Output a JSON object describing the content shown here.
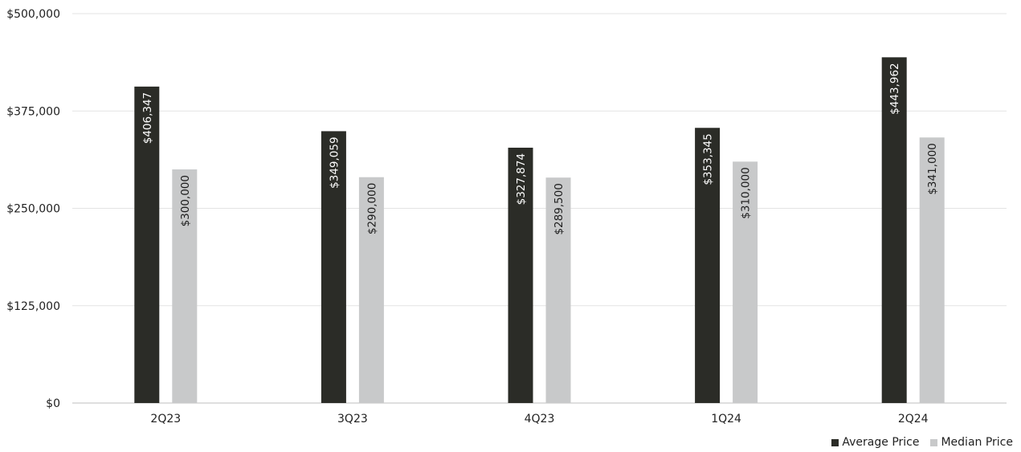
{
  "chart_data": {
    "type": "bar",
    "categories": [
      "2Q23",
      "3Q23",
      "4Q23",
      "1Q24",
      "2Q24"
    ],
    "series": [
      {
        "name": "Average Price",
        "color": "#2b2c27",
        "label_color": "#ffffff",
        "values": [
          406347,
          349059,
          327874,
          353345,
          443962
        ],
        "labels": [
          "$406,347",
          "$349,059",
          "$327,874",
          "$353,345",
          "$443,962"
        ]
      },
      {
        "name": "Median Price",
        "color": "#c8c9ca",
        "label_color": "#1e1e1e",
        "values": [
          300000,
          290000,
          289500,
          310000,
          341000
        ],
        "labels": [
          "$300,000",
          "$290,000",
          "$289,500",
          "$310,000",
          "$341,000"
        ]
      }
    ],
    "y_ticks": [
      0,
      125000,
      250000,
      375000,
      500000
    ],
    "y_tick_labels": [
      "$0",
      "$125,000",
      "$250,000",
      "$375,000",
      "$500,000"
    ],
    "ylim": [
      0,
      500000
    ],
    "grid": true,
    "legend_position": "bottom-right",
    "title": "",
    "xlabel": "",
    "ylabel": ""
  }
}
